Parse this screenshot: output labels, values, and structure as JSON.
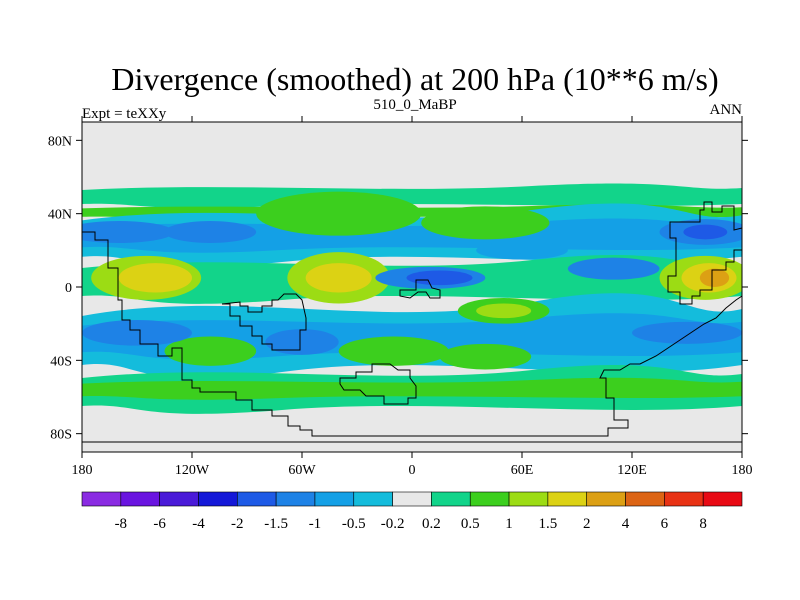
{
  "chart_data": {
    "type": "contour-map",
    "title": "Divergence (smoothed) at 200 hPa (10**6 m/s)",
    "subtitle_left": "Expt = teXXy",
    "subtitle_center": "510_0_MaBP",
    "subtitle_right": "ANN",
    "x_ticks": [
      {
        "value": -180,
        "label": "180"
      },
      {
        "value": -120,
        "label": "120W"
      },
      {
        "value": -60,
        "label": "60W"
      },
      {
        "value": 0,
        "label": "0"
      },
      {
        "value": 60,
        "label": "60E"
      },
      {
        "value": 120,
        "label": "120E"
      },
      {
        "value": 180,
        "label": "180"
      }
    ],
    "y_ticks": [
      {
        "value": 80,
        "label": "80N"
      },
      {
        "value": 40,
        "label": "40N"
      },
      {
        "value": 0,
        "label": "0"
      },
      {
        "value": -40,
        "label": "40S"
      },
      {
        "value": -80,
        "label": "80S"
      }
    ],
    "xlim": [
      -180,
      180
    ],
    "ylim": [
      -90,
      90
    ],
    "contour_levels": [
      "-8",
      "-6",
      "-4",
      "-2",
      "-1.5",
      "-1",
      "-0.5",
      "-0.2",
      "0.2",
      "0.5",
      "1",
      "1.5",
      "2",
      "4",
      "6",
      "8"
    ],
    "colorbar_colors": [
      "#8a2be2",
      "#6a14e0",
      "#4a1ad8",
      "#1418d8",
      "#1e5ae6",
      "#1e82e6",
      "#14a0e6",
      "#14bcdc",
      "#e8e8e8",
      "#12d48a",
      "#3ccf1e",
      "#9cdc14",
      "#dcd214",
      "#dca014",
      "#dc6414",
      "#e83214",
      "#e80a14"
    ],
    "field_blobs": [
      {
        "lon": -145,
        "lat": 5,
        "rlon": 30,
        "rlat": 12,
        "level": 3
      },
      {
        "lon": -140,
        "lat": 5,
        "rlon": 20,
        "rlat": 8,
        "level": 4
      },
      {
        "lon": -40,
        "lat": 5,
        "rlon": 28,
        "rlat": 14,
        "level": 3
      },
      {
        "lon": -40,
        "lat": 5,
        "rlon": 18,
        "rlat": 8,
        "level": 4
      },
      {
        "lon": 160,
        "lat": 5,
        "rlon": 25,
        "rlat": 12,
        "level": 3
      },
      {
        "lon": 162,
        "lat": 5,
        "rlon": 15,
        "rlat": 8,
        "level": 4
      },
      {
        "lon": 165,
        "lat": 5,
        "rlon": 8,
        "rlat": 5,
        "level": 5
      },
      {
        "lon": 50,
        "lat": -13,
        "rlon": 25,
        "rlat": 7,
        "level": 2
      },
      {
        "lon": 50,
        "lat": -13,
        "rlon": 15,
        "rlat": 4,
        "level": 3
      },
      {
        "lon": -110,
        "lat": -35,
        "rlon": 25,
        "rlat": 8,
        "level": 2
      },
      {
        "lon": -40,
        "lat": 40,
        "rlon": 45,
        "rlat": 12,
        "level": 2
      },
      {
        "lon": 40,
        "lat": 35,
        "rlon": 35,
        "rlat": 9,
        "level": 2
      },
      {
        "lon": -10,
        "lat": -35,
        "rlon": 30,
        "rlat": 8,
        "level": 2
      },
      {
        "lon": 40,
        "lat": -38,
        "rlon": 25,
        "rlat": 7,
        "level": 2
      },
      {
        "lon": 10,
        "lat": 5,
        "rlon": 30,
        "rlat": 6,
        "level": -3
      },
      {
        "lon": 15,
        "lat": 5,
        "rlon": 18,
        "rlat": 4,
        "level": -4
      },
      {
        "lon": -160,
        "lat": 30,
        "rlon": 30,
        "rlat": 6,
        "level": -3
      },
      {
        "lon": 160,
        "lat": 30,
        "rlon": 25,
        "rlat": 7,
        "level": -3
      },
      {
        "lon": 160,
        "lat": 30,
        "rlon": 12,
        "rlat": 4,
        "level": -4
      },
      {
        "lon": -110,
        "lat": 30,
        "rlon": 25,
        "rlat": 6,
        "level": -3
      },
      {
        "lon": -150,
        "lat": -25,
        "rlon": 30,
        "rlat": 7,
        "level": -3
      },
      {
        "lon": -60,
        "lat": -30,
        "rlon": 20,
        "rlat": 7,
        "level": -3
      },
      {
        "lon": 150,
        "lat": -25,
        "rlon": 30,
        "rlat": 6,
        "level": -3
      },
      {
        "lon": 110,
        "lat": 10,
        "rlon": 25,
        "rlat": 6,
        "level": -3
      },
      {
        "lon": 60,
        "lat": 20,
        "rlon": 25,
        "rlat": 5,
        "level": -2
      }
    ]
  }
}
